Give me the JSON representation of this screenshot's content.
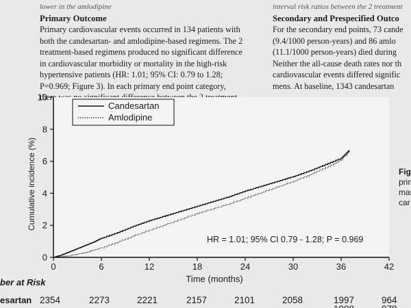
{
  "article": {
    "top_left_fragment": "lower in the amlodipine",
    "top_right_fragment": "interval risk ratios between the 2 treatment",
    "left_heading": "Primary Outcome",
    "left_lines": [
      "Primary cardiovascular events occurred in 134 patients with",
      "both the candesartan- and amlodipine-based regimens. The 2",
      "treatment-based regimens produced no significant difference",
      "in cardiovascular morbidity or mortality in the high-risk",
      "hypertensive patients (HR: 1.01; 95% CI: 0.79 to 1.28;",
      "P=0.969; Figure 3). In each primary end point category,",
      "there was no significant difference between the 2 treatment-"
    ],
    "right_heading": "Secondary and Prespecified Outco",
    "right_lines": [
      "For the secondary end points, 73 cande",
      "(9.4/1000 person-years) and 86 amlo",
      "(11.1/1000 person-years) died during",
      "Neither the all-cause death rates nor th",
      "cardiovascular events differed signific",
      "mens. At baseline, 1343 candesartan"
    ],
    "figure_side_lines": [
      "Figu",
      "prim",
      "mas",
      "car"
    ]
  },
  "chart_data": {
    "type": "line",
    "xlabel": "Time (months)",
    "ylabel": "Cumulative incidence (%)",
    "xlim": [
      0,
      42
    ],
    "ylim": [
      0,
      10
    ],
    "x_ticks": [
      "0",
      "6",
      "12",
      "18",
      "24",
      "30",
      "36",
      "42"
    ],
    "y_ticks": [
      "0",
      "2",
      "4",
      "6",
      "8",
      "10"
    ],
    "legend_position": "top-left",
    "annotation": "HR = 1.01; 95% CI 0.79 - 1.28; P = 0.969",
    "series": [
      {
        "name": "Candesartan",
        "style": "solid",
        "x": [
          0,
          1,
          2,
          3,
          4,
          5,
          6,
          8,
          10,
          12,
          14,
          16,
          18,
          20,
          22,
          24,
          26,
          28,
          30,
          32,
          34,
          36,
          37
        ],
        "y": [
          0,
          0.15,
          0.35,
          0.55,
          0.75,
          0.95,
          1.2,
          1.55,
          1.95,
          2.3,
          2.6,
          2.9,
          3.2,
          3.5,
          3.8,
          4.15,
          4.45,
          4.75,
          5.05,
          5.4,
          5.8,
          6.2,
          6.7
        ]
      },
      {
        "name": "Amlodipine",
        "style": "dotted",
        "x": [
          0,
          1,
          2,
          3,
          4,
          5,
          6,
          8,
          10,
          12,
          14,
          16,
          18,
          20,
          22,
          24,
          26,
          28,
          30,
          32,
          34,
          36,
          37
        ],
        "y": [
          0,
          0.05,
          0.1,
          0.2,
          0.3,
          0.45,
          0.6,
          0.95,
          1.35,
          1.7,
          2.05,
          2.4,
          2.75,
          3.05,
          3.35,
          3.7,
          4.05,
          4.4,
          4.75,
          5.15,
          5.6,
          6.1,
          6.6
        ]
      }
    ]
  },
  "risk_table": {
    "label": "ber at Risk",
    "row_label": "esartan",
    "values": [
      "2354",
      "2273",
      "2221",
      "2157",
      "2101",
      "2058",
      "1997",
      "964"
    ],
    "partial_second_row": [
      "1988",
      "978"
    ]
  },
  "colors": {
    "paper": "#e9e9e7",
    "ink": "#1b1b1b"
  }
}
